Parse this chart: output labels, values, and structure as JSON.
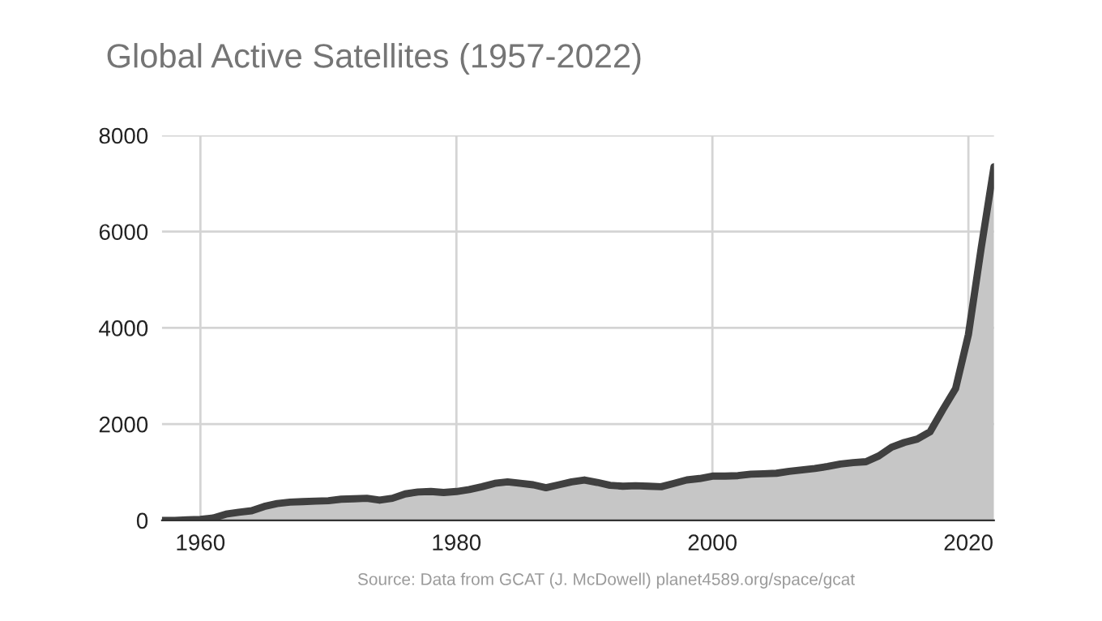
{
  "chart_data": {
    "type": "area",
    "title": "Global Active Satellites (1957-2022)",
    "x": [
      1957,
      1958,
      1959,
      1960,
      1961,
      1962,
      1963,
      1964,
      1965,
      1966,
      1967,
      1968,
      1969,
      1970,
      1971,
      1972,
      1973,
      1974,
      1975,
      1976,
      1977,
      1978,
      1979,
      1980,
      1981,
      1982,
      1983,
      1984,
      1985,
      1986,
      1987,
      1988,
      1989,
      1990,
      1991,
      1992,
      1993,
      1994,
      1995,
      1996,
      1997,
      1998,
      1999,
      2000,
      2001,
      2002,
      2003,
      2004,
      2005,
      2006,
      2007,
      2008,
      2009,
      2010,
      2011,
      2012,
      2013,
      2014,
      2015,
      2016,
      2017,
      2018,
      2019,
      2020,
      2021,
      2022
    ],
    "series": [
      {
        "color": "#404040",
        "values": [
          0,
          0,
          10,
          20,
          50,
          130,
          170,
          200,
          290,
          350,
          380,
          390,
          400,
          410,
          440,
          450,
          460,
          420,
          460,
          550,
          590,
          600,
          580,
          600,
          640,
          700,
          770,
          800,
          770,
          740,
          680,
          740,
          800,
          840,
          790,
          730,
          710,
          720,
          710,
          700,
          770,
          840,
          870,
          920,
          920,
          930,
          960,
          970,
          980,
          1020,
          1050,
          1080,
          1120,
          1170,
          1200,
          1220,
          1340,
          1520,
          1620,
          1690,
          1840,
          2300,
          2740,
          3860,
          5660,
          7350
        ]
      }
    ],
    "xlim": [
      1957,
      2022
    ],
    "ylim": [
      0,
      8000
    ],
    "xticks": [
      1960,
      1980,
      2000,
      2020
    ],
    "yticks": [
      0,
      2000,
      4000,
      6000,
      8000
    ],
    "grid": true,
    "legend": false,
    "annotations": [
      "Source: Data from GCAT (J. McDowell) planet4589.org/space/gcat"
    ]
  }
}
